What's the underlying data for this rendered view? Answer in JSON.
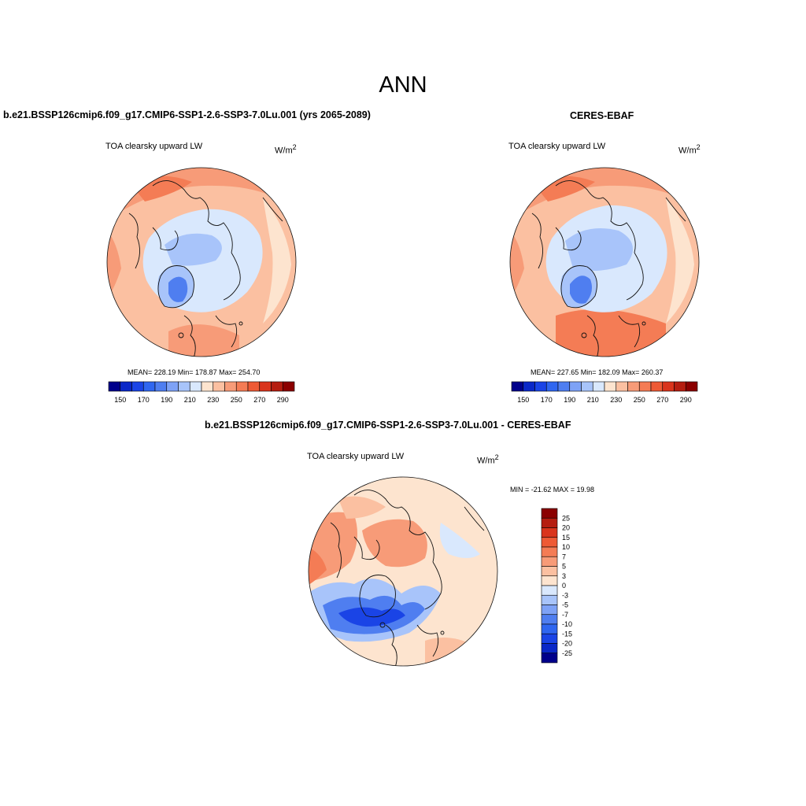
{
  "figure": {
    "title": "ANN",
    "colors": {
      "coast": "#111111",
      "blue_dark": "#1a44e6",
      "blue_mid": "#4f7ef0",
      "blue_light": "#a8c4fa",
      "blue_pale": "#d9e8fd",
      "cream": "#fde4cf",
      "salmon_light": "#fbc0a1",
      "salmon": "#f79b78",
      "orange": "#f47c55",
      "orange_deep": "#ee5a35"
    }
  },
  "panels": [
    {
      "title": "b.e21.BSSP126cmip6.f09_g17.CMIP6-SSP1-2.6-SSP3-7.0Lu.001 (yrs 2065-2089)",
      "variable": "TOA clearsky upward LW",
      "units_base": "W/m",
      "units_exp": "2",
      "stats": "MEAN= 228.19  Min= 178.87  Max= 254.70"
    },
    {
      "title": "CERES-EBAF",
      "variable": "TOA clearsky upward LW",
      "units_base": "W/m",
      "units_exp": "2",
      "stats": "MEAN= 227.65  Min= 182.09  Max= 260.37"
    },
    {
      "title": "b.e21.BSSP126cmip6.f09_g17.CMIP6-SSP1-2.6-SSP3-7.0Lu.001 - CERES-EBAF",
      "variable": "TOA clearsky upward LW",
      "units_base": "W/m",
      "units_exp": "2",
      "stats": "MIN = -21.62 MAX =  19.98"
    }
  ],
  "chart_data": [
    {
      "type": "heatmap",
      "projection": "north-polar-stereographic",
      "legend_placement": "bottom",
      "colorbar": {
        "colors": [
          "#00008b",
          "#0a28c8",
          "#1a44e6",
          "#2f66f0",
          "#4f7ef0",
          "#7ea2f6",
          "#a8c4fa",
          "#d9e8fd",
          "#fde4cf",
          "#fbc0a1",
          "#f79b78",
          "#f47c55",
          "#ee5a35",
          "#d9341c",
          "#b51d10",
          "#8b0000"
        ],
        "tick_labels": [
          "150",
          "170",
          "190",
          "210",
          "230",
          "250",
          "270",
          "290"
        ]
      }
    },
    {
      "type": "heatmap",
      "projection": "north-polar-stereographic",
      "legend_placement": "bottom",
      "colorbar": {
        "colors": [
          "#00008b",
          "#0a28c8",
          "#1a44e6",
          "#2f66f0",
          "#4f7ef0",
          "#7ea2f6",
          "#a8c4fa",
          "#d9e8fd",
          "#fde4cf",
          "#fbc0a1",
          "#f79b78",
          "#f47c55",
          "#ee5a35",
          "#d9341c",
          "#b51d10",
          "#8b0000"
        ],
        "tick_labels": [
          "150",
          "170",
          "190",
          "210",
          "230",
          "250",
          "270",
          "290"
        ]
      }
    },
    {
      "type": "heatmap",
      "projection": "north-polar-stereographic",
      "legend_placement": "right",
      "colorbar": {
        "colors": [
          "#8b0000",
          "#b51d10",
          "#d9341c",
          "#ee5a35",
          "#f47c55",
          "#f79b78",
          "#fbc0a1",
          "#fde4cf",
          "#d9e8fd",
          "#a8c4fa",
          "#7ea2f6",
          "#4f7ef0",
          "#2f66f0",
          "#1a44e6",
          "#0a28c8",
          "#00008b"
        ],
        "tick_labels": [
          "25",
          "20",
          "15",
          "10",
          "7",
          "5",
          "3",
          "0",
          "-3",
          "-5",
          "-7",
          "-10",
          "-15",
          "-20",
          "-25"
        ]
      }
    }
  ]
}
